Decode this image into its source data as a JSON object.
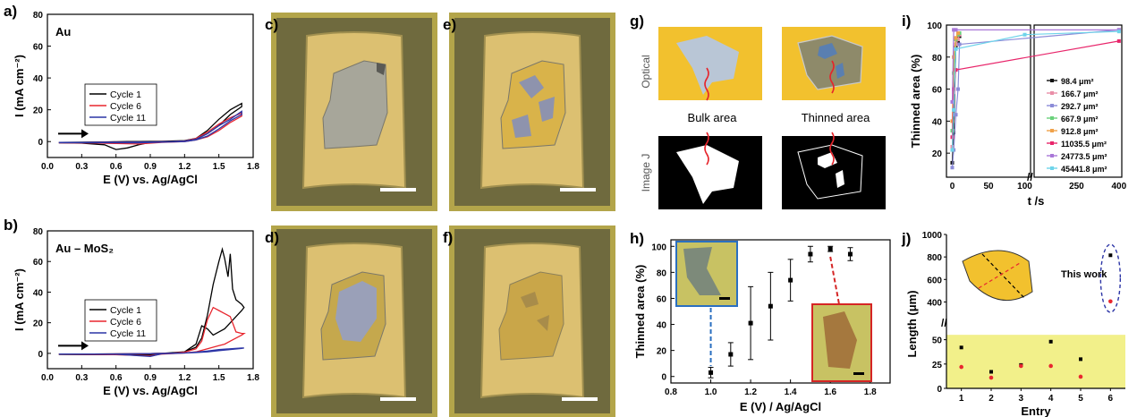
{
  "panel_labels": {
    "a": "a)",
    "b": "b)",
    "c": "c)",
    "d": "d)",
    "e": "e)",
    "f": "f)",
    "g": "g)",
    "h": "h)",
    "i": "i)",
    "j": "j)"
  },
  "chart_data": [
    {
      "id": "a",
      "type": "line",
      "title": "Au",
      "xlabel": "E (V) vs. Ag/AgCl",
      "ylabel": "I (mA cm⁻²)",
      "xlim": [
        0,
        1.8
      ],
      "ylim": [
        -10,
        80
      ],
      "xticks": [
        "0.0",
        "0.3",
        "0.6",
        "0.9",
        "1.2",
        "1.5",
        "1.8"
      ],
      "yticks": [
        "0",
        "20",
        "40",
        "60",
        "80"
      ],
      "legend_position": "center-left",
      "series": [
        {
          "name": "Cycle 1",
          "color": "#000000",
          "x": [
            0.1,
            0.3,
            0.5,
            0.6,
            0.7,
            0.8,
            0.9,
            1.0,
            1.2,
            1.3,
            1.4,
            1.5,
            1.6,
            1.7,
            1.7,
            1.6,
            1.5,
            1.4,
            1.3,
            1.2,
            1.0,
            0.9,
            0.8,
            0.7,
            0.6,
            0.5,
            0.3,
            0.1
          ],
          "y": [
            -0.5,
            -0.4,
            -0.2,
            -0.1,
            0,
            0,
            0.1,
            0.2,
            0.6,
            2,
            7,
            14,
            20,
            24,
            22,
            17,
            10,
            5,
            1.5,
            0.3,
            0,
            -0.5,
            -2,
            -4,
            -5,
            -2,
            -1,
            -0.8
          ]
        },
        {
          "name": "Cycle 6",
          "color": "#e8272f",
          "x": [
            0.1,
            0.3,
            0.5,
            0.7,
            0.9,
            1.1,
            1.2,
            1.3,
            1.4,
            1.5,
            1.6,
            1.7,
            1.7,
            1.6,
            1.5,
            1.4,
            1.3,
            1.2,
            1.0,
            0.9,
            0.8,
            0.6,
            0.4,
            0.1
          ],
          "y": [
            -0.6,
            -0.5,
            -0.4,
            -0.3,
            -0.2,
            0,
            0.4,
            2,
            6,
            11,
            15,
            18,
            16,
            12,
            7,
            3,
            1,
            0,
            -0.5,
            -1,
            -1.5,
            -1.2,
            -0.9,
            -0.8
          ]
        },
        {
          "name": "Cycle 11",
          "color": "#2c35a6",
          "x": [
            0.1,
            0.3,
            0.5,
            0.7,
            0.9,
            1.1,
            1.2,
            1.3,
            1.4,
            1.5,
            1.6,
            1.7,
            1.7,
            1.6,
            1.5,
            1.4,
            1.3,
            1.2,
            1.0,
            0.8,
            0.5,
            0.1
          ],
          "y": [
            -0.5,
            -0.5,
            -0.4,
            -0.3,
            -0.2,
            0,
            0.3,
            1.5,
            5,
            10,
            14,
            19,
            17,
            13,
            8,
            3.5,
            1,
            0,
            -0.4,
            -0.8,
            -0.7,
            -0.7
          ]
        }
      ],
      "series_names": [
        "Cycle 1",
        "Cycle 6",
        "Cycle 11"
      ]
    },
    {
      "id": "b",
      "type": "line",
      "title": "Au – MoS₂",
      "xlabel": "E (V) vs. Ag/AgCl",
      "ylabel": "I (mA cm⁻²)",
      "xlim": [
        0,
        1.8
      ],
      "ylim": [
        -10,
        80
      ],
      "xticks": [
        "0.0",
        "0.3",
        "0.6",
        "0.9",
        "1.2",
        "1.5",
        "1.8"
      ],
      "yticks": [
        "0",
        "20",
        "40",
        "60",
        "80"
      ],
      "legend_position": "center",
      "series": [
        {
          "name": "Cycle 1",
          "color": "#000000",
          "x": [
            0.1,
            0.4,
            0.7,
            0.9,
            1.1,
            1.2,
            1.3,
            1.35,
            1.4,
            1.45,
            1.5,
            1.53,
            1.55,
            1.58,
            1.6,
            1.62,
            1.65,
            1.7,
            1.72,
            1.7,
            1.65,
            1.6,
            1.55,
            1.5,
            1.45,
            1.4,
            1.35,
            1.3,
            1.2,
            1.0,
            0.9,
            0.8,
            0.5,
            0.1
          ],
          "y": [
            -0.5,
            -0.5,
            -0.3,
            -0.1,
            0.3,
            1,
            4,
            10,
            25,
            45,
            60,
            68,
            62,
            50,
            65,
            42,
            35,
            32,
            30,
            28,
            24,
            20,
            16,
            14,
            12,
            16,
            18,
            6,
            1,
            0,
            -1,
            -1,
            -0.8,
            -0.7
          ]
        },
        {
          "name": "Cycle 6",
          "color": "#e8272f",
          "x": [
            0.1,
            0.4,
            0.7,
            0.9,
            1.1,
            1.2,
            1.3,
            1.35,
            1.4,
            1.45,
            1.5,
            1.55,
            1.6,
            1.65,
            1.7,
            1.72,
            1.7,
            1.65,
            1.6,
            1.55,
            1.5,
            1.4,
            1.3,
            1.2,
            1.0,
            0.9,
            0.6,
            0.1
          ],
          "y": [
            -0.5,
            -0.4,
            -0.3,
            -0.2,
            0.2,
            0.8,
            3,
            8,
            22,
            30,
            28,
            26,
            24,
            14,
            13,
            13,
            12,
            10,
            8,
            6,
            5,
            3,
            1,
            0.2,
            -0.5,
            -1.5,
            -0.8,
            -0.6
          ]
        },
        {
          "name": "Cycle 11",
          "color": "#2c35a6",
          "x": [
            0.1,
            0.4,
            0.7,
            0.9,
            1.1,
            1.2,
            1.3,
            1.4,
            1.5,
            1.6,
            1.7,
            1.72,
            1.7,
            1.6,
            1.5,
            1.4,
            1.3,
            1.2,
            1.0,
            0.9,
            0.6,
            0.1
          ],
          "y": [
            -0.5,
            -0.4,
            -0.3,
            -0.2,
            0.1,
            0.3,
            0.8,
            1.5,
            2.5,
            3,
            3.5,
            3.5,
            3.2,
            2.5,
            1.8,
            1,
            0.5,
            0.2,
            -0.3,
            -2,
            -0.6,
            -0.5
          ]
        }
      ],
      "series_names": [
        "Cycle 1",
        "Cycle 6",
        "Cycle 11"
      ]
    },
    {
      "id": "h",
      "type": "scatter",
      "xlabel": "E (V) / Ag/AgCl",
      "ylabel": "Thinned area (%)",
      "xlim": [
        0.8,
        1.9
      ],
      "ylim": [
        -5,
        105
      ],
      "xticks": [
        "0.8",
        "1.0",
        "1.2",
        "1.4",
        "1.6",
        "1.8"
      ],
      "yticks": [
        "0",
        "20",
        "40",
        "60",
        "80",
        "100"
      ],
      "points": [
        {
          "x": 1.0,
          "y": 3,
          "err": 4
        },
        {
          "x": 1.1,
          "y": 17,
          "err": 9
        },
        {
          "x": 1.2,
          "y": 41,
          "err": 28
        },
        {
          "x": 1.3,
          "y": 54,
          "err": 26
        },
        {
          "x": 1.4,
          "y": 74,
          "err": 16
        },
        {
          "x": 1.5,
          "y": 94,
          "err": 6
        },
        {
          "x": 1.6,
          "y": 98,
          "err": 2
        },
        {
          "x": 1.7,
          "y": 94,
          "err": 5
        }
      ]
    },
    {
      "id": "i",
      "type": "line",
      "xlabel": "t /s",
      "ylabel": "Thinned area (%)",
      "xticks_left": [
        "0",
        "50",
        "100"
      ],
      "xticks_right": [
        "100",
        "250",
        "400"
      ],
      "yticks": [
        "20",
        "40",
        "60",
        "80",
        "100"
      ],
      "ylim": [
        5,
        100
      ],
      "series": [
        {
          "name": "98.4 μm²",
          "color": "#111111",
          "t": [
            0,
            2,
            5,
            8,
            10
          ],
          "y": [
            14,
            33,
            86,
            89,
            93
          ]
        },
        {
          "name": "166.7 μm²",
          "color": "#e98fa8",
          "t": [
            0,
            2,
            5,
            8,
            10
          ],
          "y": [
            24,
            58,
            88,
            91,
            94
          ]
        },
        {
          "name": "292.7 μm²",
          "color": "#8c8cd8",
          "t": [
            0,
            2,
            5,
            8,
            10,
            400
          ],
          "y": [
            11,
            22,
            44,
            60,
            88,
            97
          ]
        },
        {
          "name": "667.9 μm²",
          "color": "#6ad17b",
          "t": [
            0,
            2,
            5,
            8,
            10
          ],
          "y": [
            34,
            70,
            91,
            94,
            95
          ]
        },
        {
          "name": "912.8 μm²",
          "color": "#f0a24a",
          "t": [
            0,
            2,
            5,
            8
          ],
          "y": [
            40,
            80,
            92,
            95
          ]
        },
        {
          "name": "11035.5 μm²",
          "color": "#e8266b",
          "t": [
            0,
            2,
            5,
            400
          ],
          "y": [
            30,
            60,
            72,
            90
          ]
        },
        {
          "name": "24773.5 μm²",
          "color": "#a977d8",
          "t": [
            0,
            2,
            5,
            400
          ],
          "y": [
            52,
            97,
            97,
            97
          ]
        },
        {
          "name": "45441.8 μm²",
          "color": "#6fd4ea",
          "t": [
            0,
            2,
            5,
            100,
            400
          ],
          "y": [
            22,
            47,
            85,
            94,
            96
          ]
        }
      ]
    },
    {
      "id": "j",
      "type": "scatter",
      "xlabel": "Entry",
      "ylabel": "Length (μm)",
      "yticks_low": [
        "0",
        "25",
        "50"
      ],
      "yticks_high": [
        "400",
        "600",
        "800",
        "1000"
      ],
      "xticks": [
        "1",
        "2",
        "3",
        "4",
        "5",
        "6"
      ],
      "annotation": "This work",
      "black": [
        {
          "x": 1,
          "y": 42
        },
        {
          "x": 2,
          "y": 17
        },
        {
          "x": 3,
          "y": 24
        },
        {
          "x": 4,
          "y": 48
        },
        {
          "x": 5,
          "y": 30
        },
        {
          "x": 6,
          "y": 815
        }
      ],
      "red": [
        {
          "x": 1,
          "y": 22
        },
        {
          "x": 2,
          "y": 11
        },
        {
          "x": 3,
          "y": 23
        },
        {
          "x": 4,
          "y": 23
        },
        {
          "x": 5,
          "y": 12
        },
        {
          "x": 6,
          "y": 405
        }
      ]
    }
  ],
  "g_labels": {
    "row1": "Optical",
    "row2": "Image J",
    "bulk": "Bulk area",
    "thinned": "Thinned area"
  },
  "colors": {
    "gold": "#f2c12e",
    "flake": "#b9c6d6",
    "gray_flake": "#8e8a6a",
    "blue_spot": "#5a7fb0",
    "red_arrow": "#e6242b",
    "micro_bg": "#c9bd63",
    "micro_gold": "#e8c96a"
  }
}
